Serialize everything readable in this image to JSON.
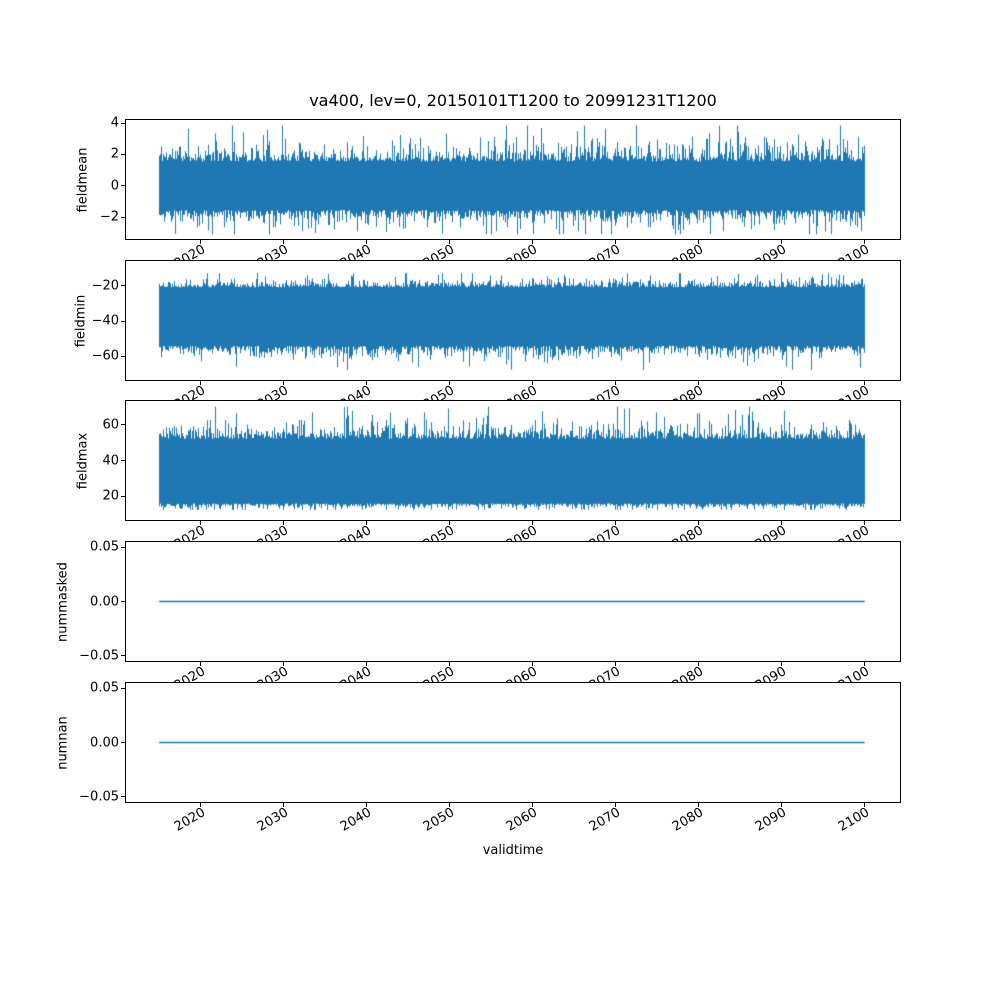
{
  "title": "va400, lev=0, 20150101T1200 to 20991231T1200",
  "colors": {
    "line": "#1f77b4",
    "frame": "#000000",
    "text": "#000000",
    "background": "#ffffff"
  },
  "x": {
    "label": "validtime",
    "lim": [
      2011.0,
      2104.25
    ],
    "ticks": [
      2020,
      2030,
      2040,
      2050,
      2060,
      2070,
      2080,
      2090,
      2100
    ],
    "tick_labels": [
      "2020",
      "2030",
      "2040",
      "2050",
      "2060",
      "2070",
      "2080",
      "2090",
      "2100"
    ],
    "tick_rotation_deg": 30,
    "data_range": [
      2015.0,
      2100.0
    ]
  },
  "chart_data": [
    {
      "type": "line",
      "ylabel": "fieldmean",
      "ylim": [
        -3.4,
        4.2
      ],
      "yticks": [
        -2,
        0,
        2,
        4
      ],
      "ytick_labels": [
        "−2",
        "0",
        "2",
        "4"
      ],
      "grid": false,
      "series": {
        "name": "fieldmean",
        "kind": "noisy",
        "description": "dense high-frequency noise, solid band approx -2..2, upward spikes to ~3.8, downward spikes to ~-3",
        "band": [
          -1.55,
          1.55
        ],
        "tail": [
          0.4,
          0.5
        ],
        "clip": [
          -3.1,
          3.85
        ],
        "seed": 11
      }
    },
    {
      "type": "line",
      "ylabel": "fieldmin",
      "ylim": [
        -73.3,
        -6.1
      ],
      "yticks": [
        -60,
        -40,
        -20
      ],
      "ytick_labels": [
        "−60",
        "−40",
        "−20"
      ],
      "grid": false,
      "series": {
        "name": "fieldmin",
        "kind": "noisy",
        "description": "dense high-frequency noise, solid band approx -55..-20, spikes down to ~-67 and up to ~-13",
        "band": [
          -54,
          -21
        ],
        "tail": [
          2.8,
          2.0
        ],
        "clip": [
          -67.5,
          -13
        ],
        "seed": 22
      }
    },
    {
      "type": "line",
      "ylabel": "fieldmax",
      "ylim": [
        6.8,
        73.2
      ],
      "yticks": [
        20,
        40,
        60
      ],
      "ytick_labels": [
        "20",
        "40",
        "60"
      ],
      "grid": false,
      "series": {
        "name": "fieldmax",
        "kind": "noisy",
        "description": "dense high-frequency noise, solid band approx 16..52, spikes up to ~70 and down to ~13",
        "band": [
          16,
          52
        ],
        "tail": [
          1.2,
          3.4
        ],
        "clip": [
          12.5,
          70
        ],
        "seed": 33
      }
    },
    {
      "type": "line",
      "ylabel": "nummasked",
      "ylim": [
        -0.055,
        0.055
      ],
      "yticks": [
        -0.05,
        0,
        0.05
      ],
      "ytick_labels": [
        "−0.05",
        "0.00",
        "0.05"
      ],
      "grid": false,
      "series": {
        "name": "nummasked",
        "kind": "constant",
        "value": 0,
        "description": "flat line at 0.00 for the whole period"
      }
    },
    {
      "type": "line",
      "ylabel": "numnan",
      "ylim": [
        -0.055,
        0.055
      ],
      "yticks": [
        -0.05,
        0,
        0.05
      ],
      "ytick_labels": [
        "−0.05",
        "0.00",
        "0.05"
      ],
      "grid": false,
      "series": {
        "name": "numnan",
        "kind": "constant",
        "value": 0,
        "description": "flat line at 0.00 for the whole period"
      }
    }
  ]
}
